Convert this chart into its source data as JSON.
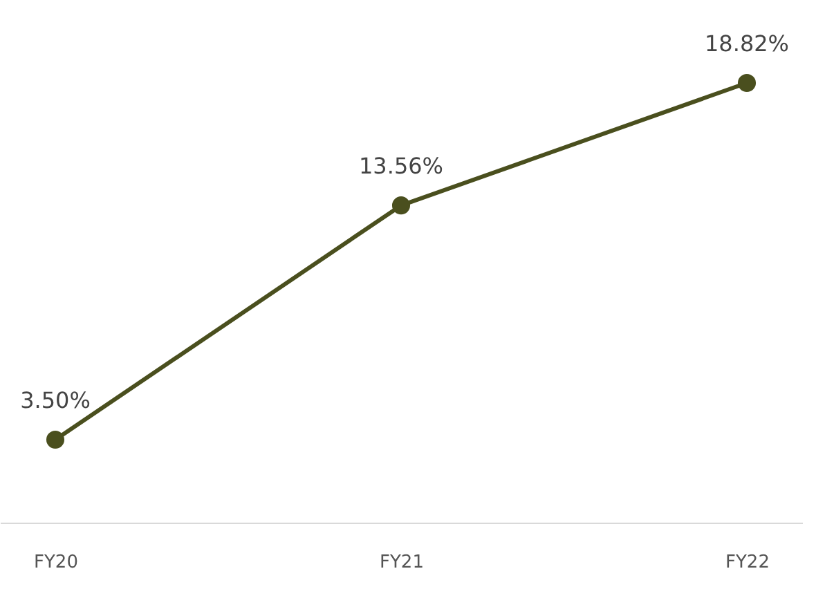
{
  "chart_data": {
    "type": "line",
    "categories": [
      "FY20",
      "FY21",
      "FY22"
    ],
    "series": [
      {
        "color": "#4a4f1e",
        "values": [
          3.5,
          13.56,
          18.82
        ],
        "value_labels": [
          "3.50%",
          "13.56%",
          "18.82%"
        ]
      }
    ],
    "marker": "circle",
    "line_style": "solid"
  }
}
